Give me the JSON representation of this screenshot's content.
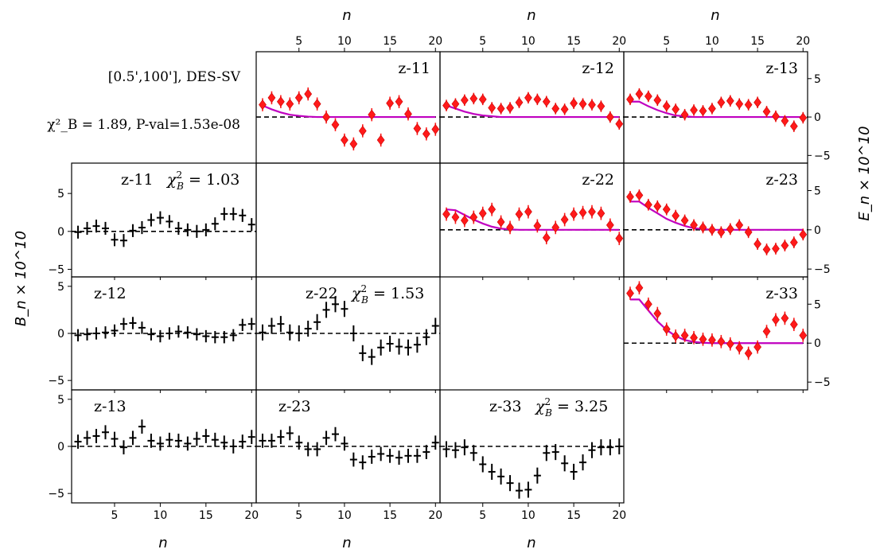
{
  "figure": {
    "annotation_range": "[0.5',100'],  DES-SV",
    "annotation_chi2": "χ²_B = 1.89, P-val=1.53e-08",
    "x_axis_label": "n",
    "y_label_left": "B_n × 10^10",
    "y_label_right": "E_n × 10^10"
  },
  "chart_data": [
    {
      "type": "scatter",
      "mode": "E",
      "label": "z-11",
      "x": [
        1,
        2,
        3,
        4,
        5,
        6,
        7,
        8,
        9,
        10,
        11,
        12,
        13,
        14,
        15,
        16,
        17,
        18,
        19,
        20
      ],
      "y": [
        1.6,
        2.5,
        2.0,
        1.7,
        2.5,
        3.0,
        1.7,
        0.0,
        -1.0,
        -3.0,
        -3.5,
        -1.8,
        0.3,
        -3.0,
        1.8,
        2.0,
        0.4,
        -1.5,
        -2.2,
        -1.6
      ],
      "yerr": 0.85,
      "model": [
        1.5,
        1.0,
        0.6,
        0.3,
        0.15,
        0.05,
        0,
        0,
        0,
        0,
        0,
        0,
        0,
        0,
        0,
        0,
        0,
        0,
        0,
        0
      ],
      "xlim": [
        0.3,
        20.5
      ],
      "ylim": [
        -6,
        8.5
      ]
    },
    {
      "type": "scatter",
      "mode": "E",
      "label": "z-12",
      "x": [
        1,
        2,
        3,
        4,
        5,
        6,
        7,
        8,
        9,
        10,
        11,
        12,
        13,
        14,
        15,
        16,
        17,
        18,
        19,
        20
      ],
      "y": [
        1.5,
        1.7,
        2.2,
        2.4,
        2.3,
        1.2,
        1.1,
        1.2,
        1.9,
        2.5,
        2.3,
        2.0,
        1.1,
        1.0,
        1.8,
        1.7,
        1.6,
        1.4,
        0.0,
        -0.9
      ],
      "yerr": 0.75,
      "model": [
        1.5,
        1.1,
        0.7,
        0.4,
        0.2,
        0.1,
        0,
        0,
        0,
        0,
        0,
        0,
        0,
        0,
        0,
        0,
        0,
        0,
        0,
        0
      ],
      "xlim": [
        0.3,
        20.5
      ],
      "ylim": [
        -6,
        8.5
      ]
    },
    {
      "type": "scatter",
      "mode": "E",
      "label": "z-13",
      "x": [
        1,
        2,
        3,
        4,
        5,
        6,
        7,
        8,
        9,
        10,
        11,
        12,
        13,
        14,
        15,
        16,
        17,
        18,
        19,
        20
      ],
      "y": [
        2.3,
        3.0,
        2.7,
        2.2,
        1.4,
        1.0,
        0.3,
        0.9,
        0.8,
        1.1,
        1.9,
        2.1,
        1.7,
        1.6,
        1.9,
        0.7,
        0.1,
        -0.5,
        -1.2,
        -0.1
      ],
      "yerr": 0.75,
      "model": [
        2.0,
        2.0,
        1.4,
        0.9,
        0.5,
        0.2,
        0.1,
        0,
        0,
        0,
        0,
        0,
        0,
        0,
        0,
        0,
        0,
        0,
        0,
        0
      ],
      "xlim": [
        0.3,
        20.5
      ],
      "ylim": [
        -6,
        8.5
      ]
    },
    {
      "type": "scatter",
      "mode": "E",
      "label": "z-22",
      "x": [
        1,
        2,
        3,
        4,
        5,
        6,
        7,
        8,
        9,
        10,
        11,
        12,
        13,
        14,
        15,
        16,
        17,
        18,
        19,
        20
      ],
      "y": [
        2.0,
        1.6,
        1.2,
        1.6,
        2.1,
        2.6,
        1.0,
        0.3,
        2.0,
        2.3,
        0.5,
        -1.0,
        0.3,
        1.3,
        2.0,
        2.2,
        2.3,
        2.1,
        0.6,
        -1.1
      ],
      "yerr": 0.85,
      "model": [
        2.6,
        2.5,
        1.9,
        1.3,
        0.8,
        0.4,
        0.15,
        0.05,
        0,
        0,
        0,
        0,
        0,
        0,
        0,
        0,
        0,
        0,
        0,
        0
      ],
      "xlim": [
        0.3,
        20.5
      ],
      "ylim": [
        -6,
        8.5
      ]
    },
    {
      "type": "scatter",
      "mode": "E",
      "label": "z-23",
      "x": [
        1,
        2,
        3,
        4,
        5,
        6,
        7,
        8,
        9,
        10,
        11,
        12,
        13,
        14,
        15,
        16,
        17,
        18,
        19,
        20
      ],
      "y": [
        4.2,
        4.4,
        3.2,
        3.0,
        2.6,
        1.8,
        1.2,
        0.6,
        0.3,
        0.0,
        -0.3,
        0.1,
        0.6,
        -0.3,
        -1.8,
        -2.5,
        -2.4,
        -2.0,
        -1.6,
        -0.6
      ],
      "yerr": 0.75,
      "model": [
        3.6,
        3.6,
        2.8,
        2.1,
        1.4,
        0.9,
        0.5,
        0.2,
        0.1,
        0,
        0,
        0,
        0,
        0,
        0,
        0,
        0,
        0,
        0,
        0
      ],
      "xlim": [
        0.3,
        20.5
      ],
      "ylim": [
        -6,
        8.5
      ]
    },
    {
      "type": "scatter",
      "mode": "E",
      "label": "z-33",
      "x": [
        1,
        2,
        3,
        4,
        5,
        6,
        7,
        8,
        9,
        10,
        11,
        12,
        13,
        14,
        15,
        16,
        17,
        18,
        19,
        20
      ],
      "y": [
        6.4,
        7.1,
        5.0,
        3.8,
        1.8,
        0.9,
        1.0,
        0.7,
        0.5,
        0.4,
        0.2,
        -0.1,
        -0.6,
        -1.3,
        -0.5,
        1.5,
        3.0,
        3.2,
        2.4,
        1.0
      ],
      "yerr": 0.85,
      "model": [
        5.6,
        5.6,
        4.2,
        2.8,
        1.7,
        0.9,
        0.4,
        0.15,
        0.05,
        0,
        0,
        0,
        0,
        0,
        0,
        0,
        0,
        0,
        0,
        0
      ],
      "xlim": [
        0.3,
        20.5
      ],
      "ylim": [
        -6,
        8.5
      ]
    },
    {
      "type": "scatter",
      "mode": "B",
      "label": "z-11",
      "chi2": "1.03",
      "x": [
        1,
        2,
        3,
        4,
        5,
        6,
        7,
        8,
        9,
        10,
        11,
        12,
        13,
        14,
        15,
        16,
        17,
        18,
        19,
        20
      ],
      "y": [
        -0.1,
        0.4,
        0.7,
        0.4,
        -1.1,
        -1.2,
        0.1,
        0.5,
        1.5,
        1.8,
        1.3,
        0.4,
        0.2,
        0.0,
        0.2,
        1.0,
        2.3,
        2.3,
        2.1,
        0.9
      ],
      "yerr": 0.85,
      "xlim": [
        0.3,
        20.5
      ],
      "ylim": [
        -6,
        9
      ]
    },
    {
      "type": "scatter",
      "mode": "B",
      "label": "z-12",
      "x": [
        1,
        2,
        3,
        4,
        5,
        6,
        7,
        8,
        9,
        10,
        11,
        12,
        13,
        14,
        15,
        16,
        17,
        18,
        19,
        20
      ],
      "y": [
        -0.2,
        -0.1,
        0.0,
        0.1,
        0.3,
        1.0,
        1.1,
        0.6,
        -0.1,
        -0.3,
        0.0,
        0.2,
        0.1,
        -0.1,
        -0.3,
        -0.4,
        -0.4,
        -0.2,
        0.9,
        1.0
      ],
      "yerr": 0.65,
      "xlim": [
        0.3,
        20.5
      ],
      "ylim": [
        -6,
        6
      ]
    },
    {
      "type": "scatter",
      "mode": "B",
      "label": "z-22",
      "chi2": "1.53",
      "x": [
        1,
        2,
        3,
        4,
        5,
        6,
        7,
        8,
        9,
        10,
        11,
        12,
        13,
        14,
        15,
        16,
        17,
        18,
        19,
        20
      ],
      "y": [
        0.1,
        0.8,
        1.0,
        0.1,
        0.0,
        0.5,
        1.2,
        2.5,
        3.1,
        2.6,
        0.0,
        -2.1,
        -2.5,
        -1.5,
        -1.1,
        -1.4,
        -1.5,
        -1.2,
        -0.4,
        0.8
      ],
      "yerr": 0.85,
      "xlim": [
        0.3,
        20.5
      ],
      "ylim": [
        -6,
        6
      ]
    },
    {
      "type": "scatter",
      "mode": "B",
      "label": "z-13",
      "x": [
        1,
        2,
        3,
        4,
        5,
        6,
        7,
        8,
        9,
        10,
        11,
        12,
        13,
        14,
        15,
        16,
        17,
        18,
        19,
        20
      ],
      "y": [
        0.5,
        0.9,
        1.1,
        1.5,
        0.8,
        -0.1,
        0.9,
        2.1,
        0.6,
        0.3,
        0.7,
        0.6,
        0.3,
        0.8,
        1.1,
        0.7,
        0.4,
        0.0,
        0.5,
        1.0
      ],
      "yerr": 0.75,
      "xlim": [
        0.3,
        20.5
      ],
      "ylim": [
        -6,
        6
      ]
    },
    {
      "type": "scatter",
      "mode": "B",
      "label": "z-23",
      "x": [
        1,
        2,
        3,
        4,
        5,
        6,
        7,
        8,
        9,
        10,
        11,
        12,
        13,
        14,
        15,
        16,
        17,
        18,
        19,
        20
      ],
      "y": [
        0.6,
        0.6,
        1.0,
        1.4,
        0.4,
        -0.3,
        -0.3,
        0.9,
        1.3,
        0.3,
        -1.4,
        -1.7,
        -1.1,
        -0.8,
        -1.0,
        -1.2,
        -1.0,
        -1.0,
        -0.6,
        0.4
      ],
      "yerr": 0.75,
      "xlim": [
        0.3,
        20.5
      ],
      "ylim": [
        -6,
        6
      ]
    },
    {
      "type": "scatter",
      "mode": "B",
      "label": "z-33",
      "chi2": "3.25",
      "x": [
        1,
        2,
        3,
        4,
        5,
        6,
        7,
        8,
        9,
        10,
        11,
        12,
        13,
        14,
        15,
        16,
        17,
        18,
        19,
        20
      ],
      "y": [
        -0.3,
        -0.4,
        -0.1,
        -0.7,
        -1.9,
        -2.7,
        -3.2,
        -3.9,
        -4.7,
        -4.6,
        -3.1,
        -0.7,
        -0.6,
        -1.8,
        -2.7,
        -1.7,
        -0.4,
        -0.1,
        -0.1,
        0.0
      ],
      "yerr": 0.85,
      "xlim": [
        0.3,
        20.5
      ],
      "ylim": [
        -6,
        6
      ]
    }
  ]
}
